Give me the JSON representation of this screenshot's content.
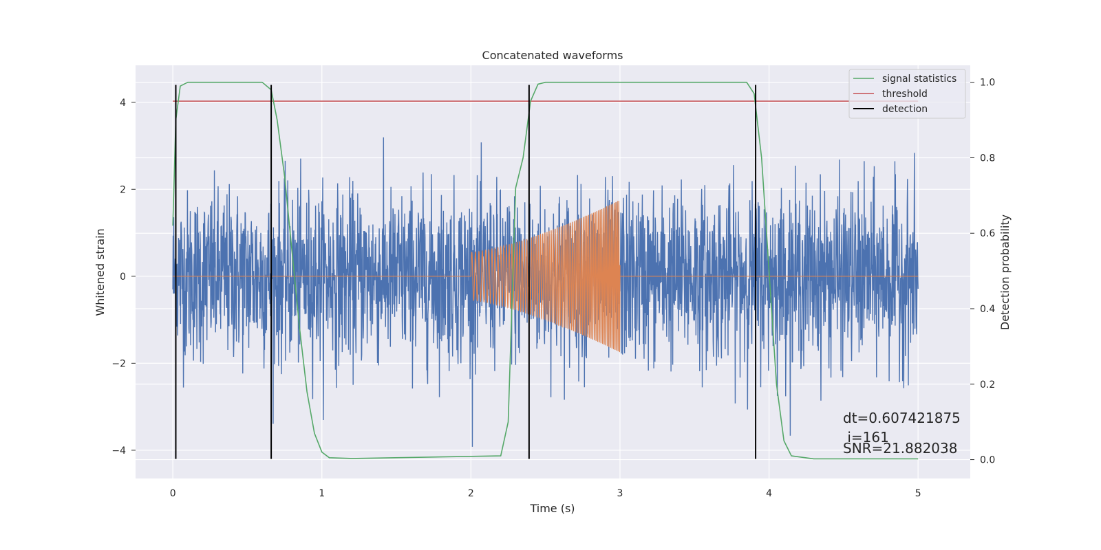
{
  "chart_data": {
    "type": "line",
    "title": "Concatenated waveforms",
    "xlabel": "Time (s)",
    "ylabel": "Whitened strain",
    "ylabel_right": "Detection probability",
    "xlim": [
      -0.25,
      5.35
    ],
    "ylim": [
      -4.65,
      4.85
    ],
    "ylim_right": [
      -0.05,
      1.045
    ],
    "x_ticks": [
      0,
      1,
      2,
      3,
      4,
      5
    ],
    "y_ticks": [
      -4,
      -2,
      0,
      2,
      4
    ],
    "y_ticks_right": [
      0.0,
      0.2,
      0.4,
      0.6,
      0.8,
      1.0
    ],
    "grid": true,
    "legend_position": "upper-right",
    "series": [
      {
        "name": "",
        "kind": "noise",
        "color": "#4c72b0",
        "x_range": [
          0,
          5
        ],
        "typical_amplitude": 1.3,
        "extreme_min": -4.2,
        "extreme_max": 4.4
      },
      {
        "name": "",
        "kind": "chirp",
        "color": "#dd8452",
        "x_range": [
          0,
          5
        ],
        "signal_start": 2.0,
        "signal_end": 3.0,
        "amplitude_start": 0.55,
        "amplitude_end": 1.75
      },
      {
        "name": "signal statistics",
        "axis": "right",
        "color": "#55a868",
        "x": [
          0.0,
          0.02,
          0.05,
          0.1,
          0.6,
          0.66,
          0.7,
          0.75,
          0.8,
          0.85,
          0.9,
          0.95,
          1.0,
          1.05,
          1.2,
          2.2,
          2.25,
          2.3,
          2.35,
          2.4,
          2.45,
          2.5,
          3.85,
          3.9,
          3.95,
          4.0,
          4.05,
          4.1,
          4.15,
          4.3,
          5.0
        ],
        "y": [
          0.62,
          0.9,
          0.99,
          1.0,
          1.0,
          0.98,
          0.9,
          0.75,
          0.55,
          0.35,
          0.18,
          0.07,
          0.02,
          0.005,
          0.003,
          0.01,
          0.1,
          0.72,
          0.8,
          0.95,
          0.995,
          1.0,
          1.0,
          0.97,
          0.8,
          0.5,
          0.2,
          0.05,
          0.01,
          0.002,
          0.002
        ]
      },
      {
        "name": "threshold",
        "axis": "right",
        "color": "#c44e52",
        "x": [
          0,
          5
        ],
        "y": [
          0.95,
          0.95
        ]
      },
      {
        "name": "detection",
        "kind": "vlines",
        "color": "#000000",
        "x": [
          0.02,
          0.66,
          2.39,
          3.91
        ],
        "y_range": [
          -4.2,
          4.4
        ]
      }
    ],
    "annotations": [
      "dt=0.607421875",
      " i=161",
      "SNR=21.882038"
    ]
  }
}
